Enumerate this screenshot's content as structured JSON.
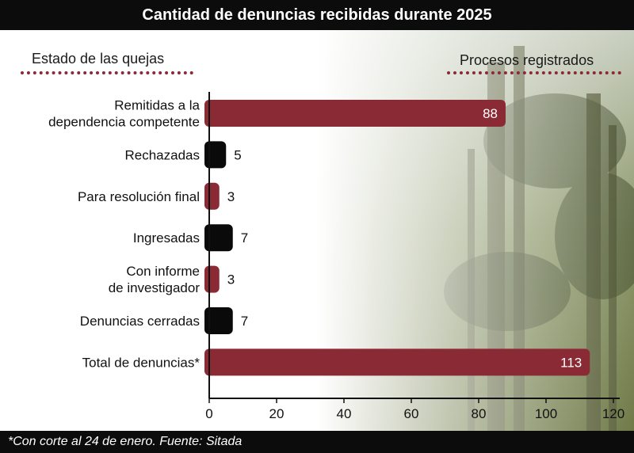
{
  "title": "Cantidad de denuncias recibidas durante 2025",
  "left_header": "Estado de las quejas",
  "right_header": "Procesos registrados",
  "footnote": "*Con corte al 24 de enero. Fuente: Sitada",
  "colors": {
    "red": "#8a2a35",
    "black": "#0a0a0a",
    "band": "#0c0c0c"
  },
  "chart_data": {
    "type": "bar",
    "orientation": "horizontal",
    "categories": [
      [
        "Remitidas a la",
        "dependencia competente"
      ],
      [
        "Rechazadas"
      ],
      [
        "Para resolución final"
      ],
      [
        "Ingresadas"
      ],
      [
        "Con informe",
        "de investigador"
      ],
      [
        "Denuncias cerradas"
      ],
      [
        "Total de denuncias*"
      ]
    ],
    "values": [
      88,
      5,
      3,
      7,
      3,
      7,
      113
    ],
    "bar_colors": [
      "#8a2a35",
      "#0a0a0a",
      "#8a2a35",
      "#0a0a0a",
      "#8a2a35",
      "#0a0a0a",
      "#8a2a35"
    ],
    "label_inside": [
      true,
      false,
      false,
      false,
      false,
      false,
      true
    ],
    "xlim": [
      0,
      120
    ],
    "xticks": [
      0,
      20,
      40,
      60,
      80,
      100,
      120
    ],
    "xlabel": "",
    "ylabel": "",
    "grid": false
  }
}
